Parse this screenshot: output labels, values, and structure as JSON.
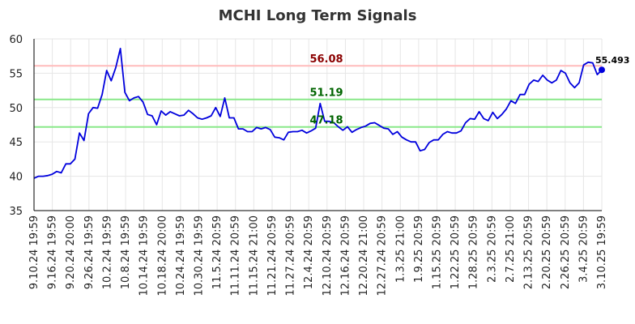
{
  "colors": {
    "line": "#0000dd",
    "grid": "#e6e6e6",
    "resistance_line": "#ffbbbb",
    "resistance_label": "#8b0000",
    "support_line": "#88e888",
    "support_label": "#006400"
  },
  "chart_data": {
    "type": "line",
    "title": "MCHI Long Term Signals",
    "xlabel": "",
    "ylabel": "",
    "ylim": [
      35,
      60
    ],
    "yticks": [
      35,
      40,
      45,
      50,
      55,
      60
    ],
    "grid": true,
    "x_tick_labels": [
      "9.10.24 19:59",
      "9.16.24 19:59",
      "9.20.24 20:00",
      "9.26.24 19:59",
      "10.2.24 19:59",
      "10.8.24 19:59",
      "10.14.24 19:59",
      "10.18.24 20:00",
      "10.24.24 19:59",
      "10.30.24 19:59",
      "11.5.24 20:59",
      "11.11.24 20:59",
      "11.15.24 21:00",
      "11.21.24 20:59",
      "11.27.24 20:59",
      "12.4.24 20:59",
      "12.10.24 20:59",
      "12.16.24 20:59",
      "12.20.24 21:00",
      "12.27.24 20:59",
      "1.3.25 21:00",
      "1.9.25 20:59",
      "1.15.25 20:59",
      "1.22.25 20:59",
      "1.28.25 20:59",
      "2.3.25 20:59",
      "2.7.25 21:00",
      "2.13.25 20:59",
      "2.20.25 20:59",
      "2.26.25 20:59",
      "3.4.25 20:59",
      "3.10.25 19:59"
    ],
    "series": [
      {
        "values": [
          39.7,
          40.0,
          40.0,
          40.1,
          40.3,
          40.7,
          40.5,
          41.8,
          41.8,
          42.5,
          46.3,
          45.2,
          49.1,
          50.0,
          49.9,
          51.9,
          55.4,
          53.9,
          55.8,
          58.6,
          52.2,
          51.0,
          51.4,
          51.6,
          50.8,
          49.0,
          48.8,
          47.5,
          49.5,
          48.9,
          49.4,
          49.1,
          48.8,
          48.9,
          49.6,
          49.1,
          48.5,
          48.3,
          48.5,
          48.8,
          50.0,
          48.7,
          51.4,
          48.5,
          48.5,
          46.9,
          46.9,
          46.5,
          46.5,
          47.1,
          46.9,
          47.1,
          46.8,
          45.7,
          45.6,
          45.3,
          46.4,
          46.5,
          46.5,
          46.7,
          46.3,
          46.6,
          47.0,
          50.6,
          48.0,
          48.0,
          47.8,
          47.2,
          46.7,
          47.2,
          46.4,
          46.8,
          47.1,
          47.3,
          47.7,
          47.8,
          47.4,
          47.0,
          46.9,
          46.1,
          46.5,
          45.7,
          45.3,
          45.0,
          45.0,
          43.7,
          43.9,
          44.9,
          45.3,
          45.3,
          46.1,
          46.5,
          46.3,
          46.3,
          46.6,
          47.8,
          48.4,
          48.3,
          49.4,
          48.4,
          48.1,
          49.3,
          48.4,
          49.0,
          49.8,
          51.0,
          50.6,
          51.9,
          51.9,
          53.4,
          54.0,
          53.8,
          54.7,
          54.0,
          53.6,
          54.0,
          55.4,
          55.0,
          53.6,
          52.9,
          53.6,
          56.2,
          56.6,
          56.5,
          54.8,
          55.493
        ]
      }
    ],
    "horizontal_lines": [
      {
        "value": 56.08,
        "label": "56.08",
        "kind": "resistance"
      },
      {
        "value": 51.19,
        "label": "51.19",
        "kind": "support"
      },
      {
        "value": 47.18,
        "label": "47.18",
        "kind": "support"
      }
    ],
    "last_value_label": "55.493"
  }
}
